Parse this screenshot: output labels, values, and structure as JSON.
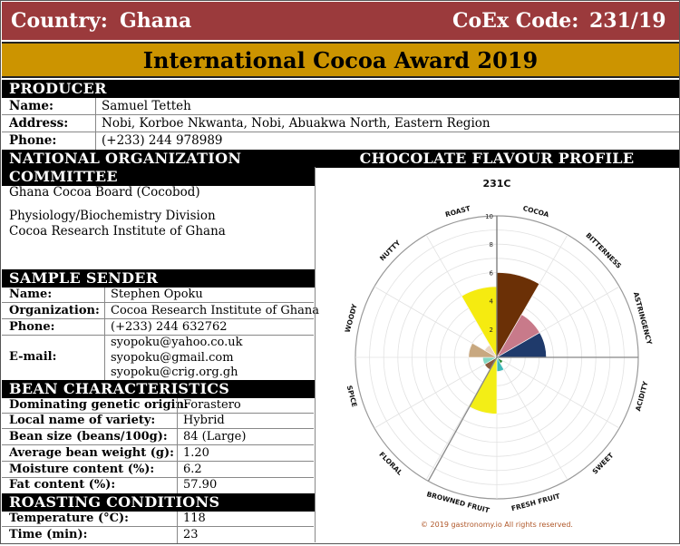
{
  "header": {
    "country_label": "Country:",
    "country": "Ghana",
    "coex_label": "CoEx Code:",
    "coex_code": "231/19"
  },
  "award_title": "International Cocoa Award 2019",
  "producer": {
    "section": "PRODUCER",
    "name_label": "Name:",
    "name": "Samuel Tetteh",
    "address_label": "Address:",
    "address": "Nobi, Korboe Nkwanta, Nobi, Abuakwa North, Eastern Region",
    "phone_label": "Phone:",
    "phone": "(+233) 244 978989"
  },
  "noc": {
    "section": "NATIONAL ORGANIZATION COMMITTEE",
    "line1": "Ghana Cocoa Board (Cocobod)",
    "line2": "Physiology/Biochemistry Division",
    "line3": "Cocoa Research Institute of Ghana"
  },
  "sender": {
    "section": "SAMPLE SENDER",
    "name_label": "Name:",
    "name": "Stephen Opoku",
    "org_label": "Organization:",
    "org": "Cocoa Research Institute of Ghana",
    "phone_label": "Phone:",
    "phone": "(+233) 244 632762",
    "email_label": "E-mail:",
    "emails": [
      "syopoku@yahoo.co.uk",
      "syopoku@gmail.com",
      "syopoku@crig.org.gh"
    ]
  },
  "bean": {
    "section": "BEAN CHARACTERISTICS",
    "rows": [
      {
        "label": "Dominating genetic origin:",
        "value": "Forastero"
      },
      {
        "label": "Local name of variety:",
        "value": "Hybrid"
      },
      {
        "label": "Bean size (beans/100g):",
        "value": "84 (Large)"
      },
      {
        "label": "Average bean weight (g):",
        "value": "1.20"
      },
      {
        "label": "Moisture content (%):",
        "value": "6.2"
      },
      {
        "label": "Fat content (%):",
        "value": "57.90"
      }
    ]
  },
  "roasting": {
    "section": "ROASTING CONDITIONS",
    "rows": [
      {
        "label": "Temperature (°C):",
        "value": "118"
      },
      {
        "label": "Time (min):",
        "value": "23"
      }
    ]
  },
  "profile_section": "CHOCOLATE FLAVOUR PROFILE",
  "chart_data": {
    "type": "polar-bar",
    "title": "231C",
    "rmax": 10,
    "ticks": [
      "2",
      "4",
      "6",
      "8",
      "10"
    ],
    "categories": [
      "COCOA",
      "BITTERNESS",
      "ASTRINGENCY",
      "ACIDITY",
      "SWEET",
      "FRESH FRUIT",
      "BROWNED FRUIT",
      "FLORAL",
      "SPICE",
      "WOODY",
      "NUTTY",
      "ROAST"
    ],
    "values": [
      6,
      3.5,
      3.5,
      0,
      0.5,
      1,
      4,
      1,
      1,
      2,
      1,
      5
    ],
    "colors": [
      "#6b3006",
      "#c87a8a",
      "#1f3a6b",
      "#b9dd2c",
      "#2f8a3b",
      "#3fb8b8",
      "#f3ee16",
      "#8a5a3c",
      "#82d8c2",
      "#c8a880",
      "#e9d4c0",
      "#f5eb10"
    ],
    "copyright": "© 2019 gastronomy.io All rights reserved."
  }
}
